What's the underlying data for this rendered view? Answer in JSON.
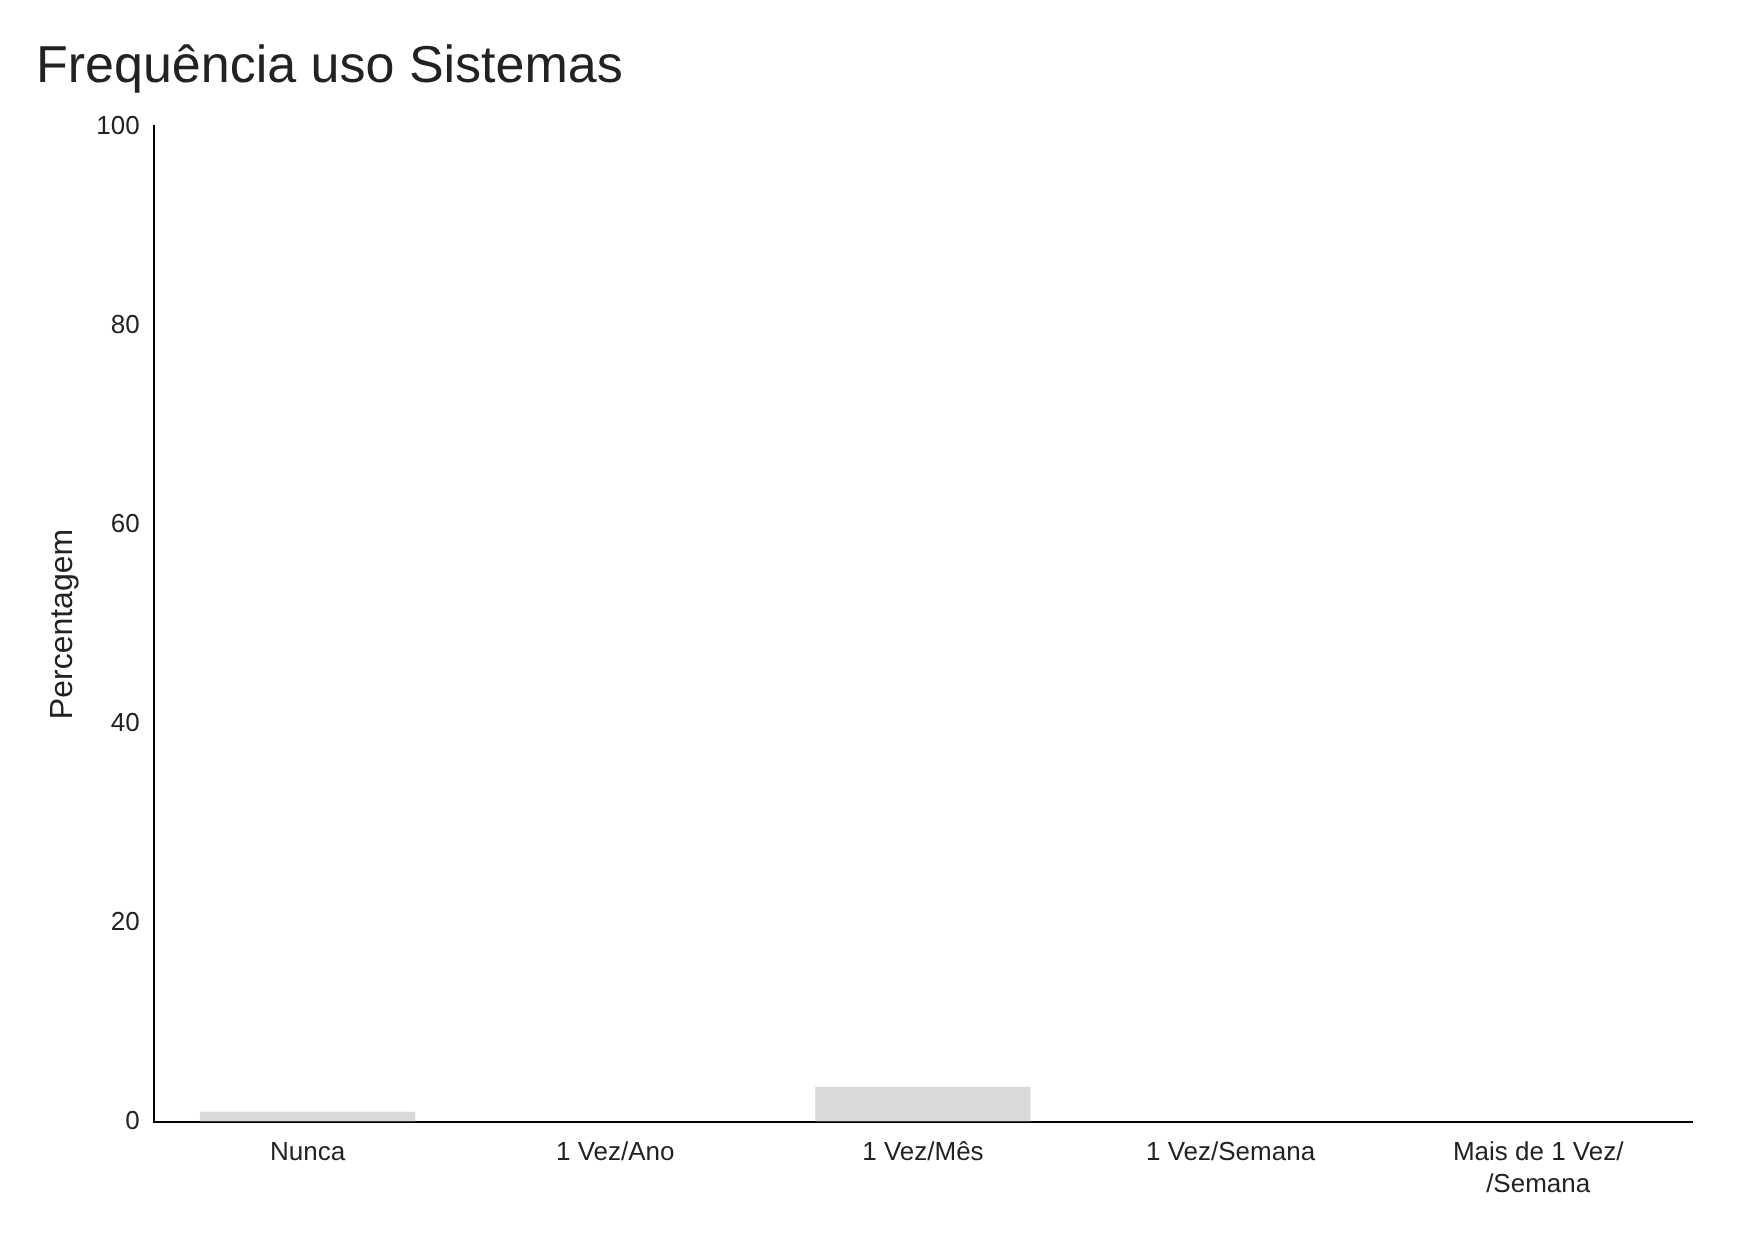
{
  "chart_data": {
    "type": "bar",
    "title": "Frequência uso Sistemas",
    "ylabel": "Percentagem",
    "categories": [
      "Nunca",
      "1 Vez/Ano",
      "1 Vez/Mês",
      "1 Vez/Semana",
      "Mais de 1 Vez/\n/Semana"
    ],
    "values": [
      1,
      0,
      3.5,
      0,
      0
    ],
    "color": "#d9d9d9",
    "ylim": [
      0,
      100
    ],
    "yticks": [
      0,
      20,
      40,
      60,
      80,
      100
    ],
    "grid": false,
    "legend": false
  }
}
